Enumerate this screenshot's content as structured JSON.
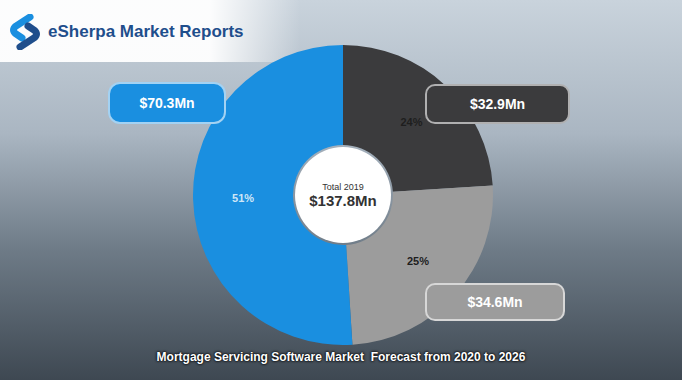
{
  "source": "eSherpa Market Reports",
  "chart_data": {
    "type": "pie",
    "title": "Mortgage Servicing Software Market  Forecast from 2020 to 2026",
    "center_label": "Total 2019",
    "total": 137.8,
    "total_label": "$137.8Mn",
    "values": [
      24,
      25,
      51
    ],
    "value_labels": [
      "24%",
      "25%",
      "51%"
    ],
    "data_labels": true,
    "amounts": [
      32.9,
      34.6,
      70.3
    ],
    "amount_labels": [
      "$32.9Mn",
      "$34.6Mn",
      "$70.3Mn"
    ],
    "colors": [
      "#3b3b3d",
      "#9c9c9c",
      "#1a8fe0"
    ]
  }
}
